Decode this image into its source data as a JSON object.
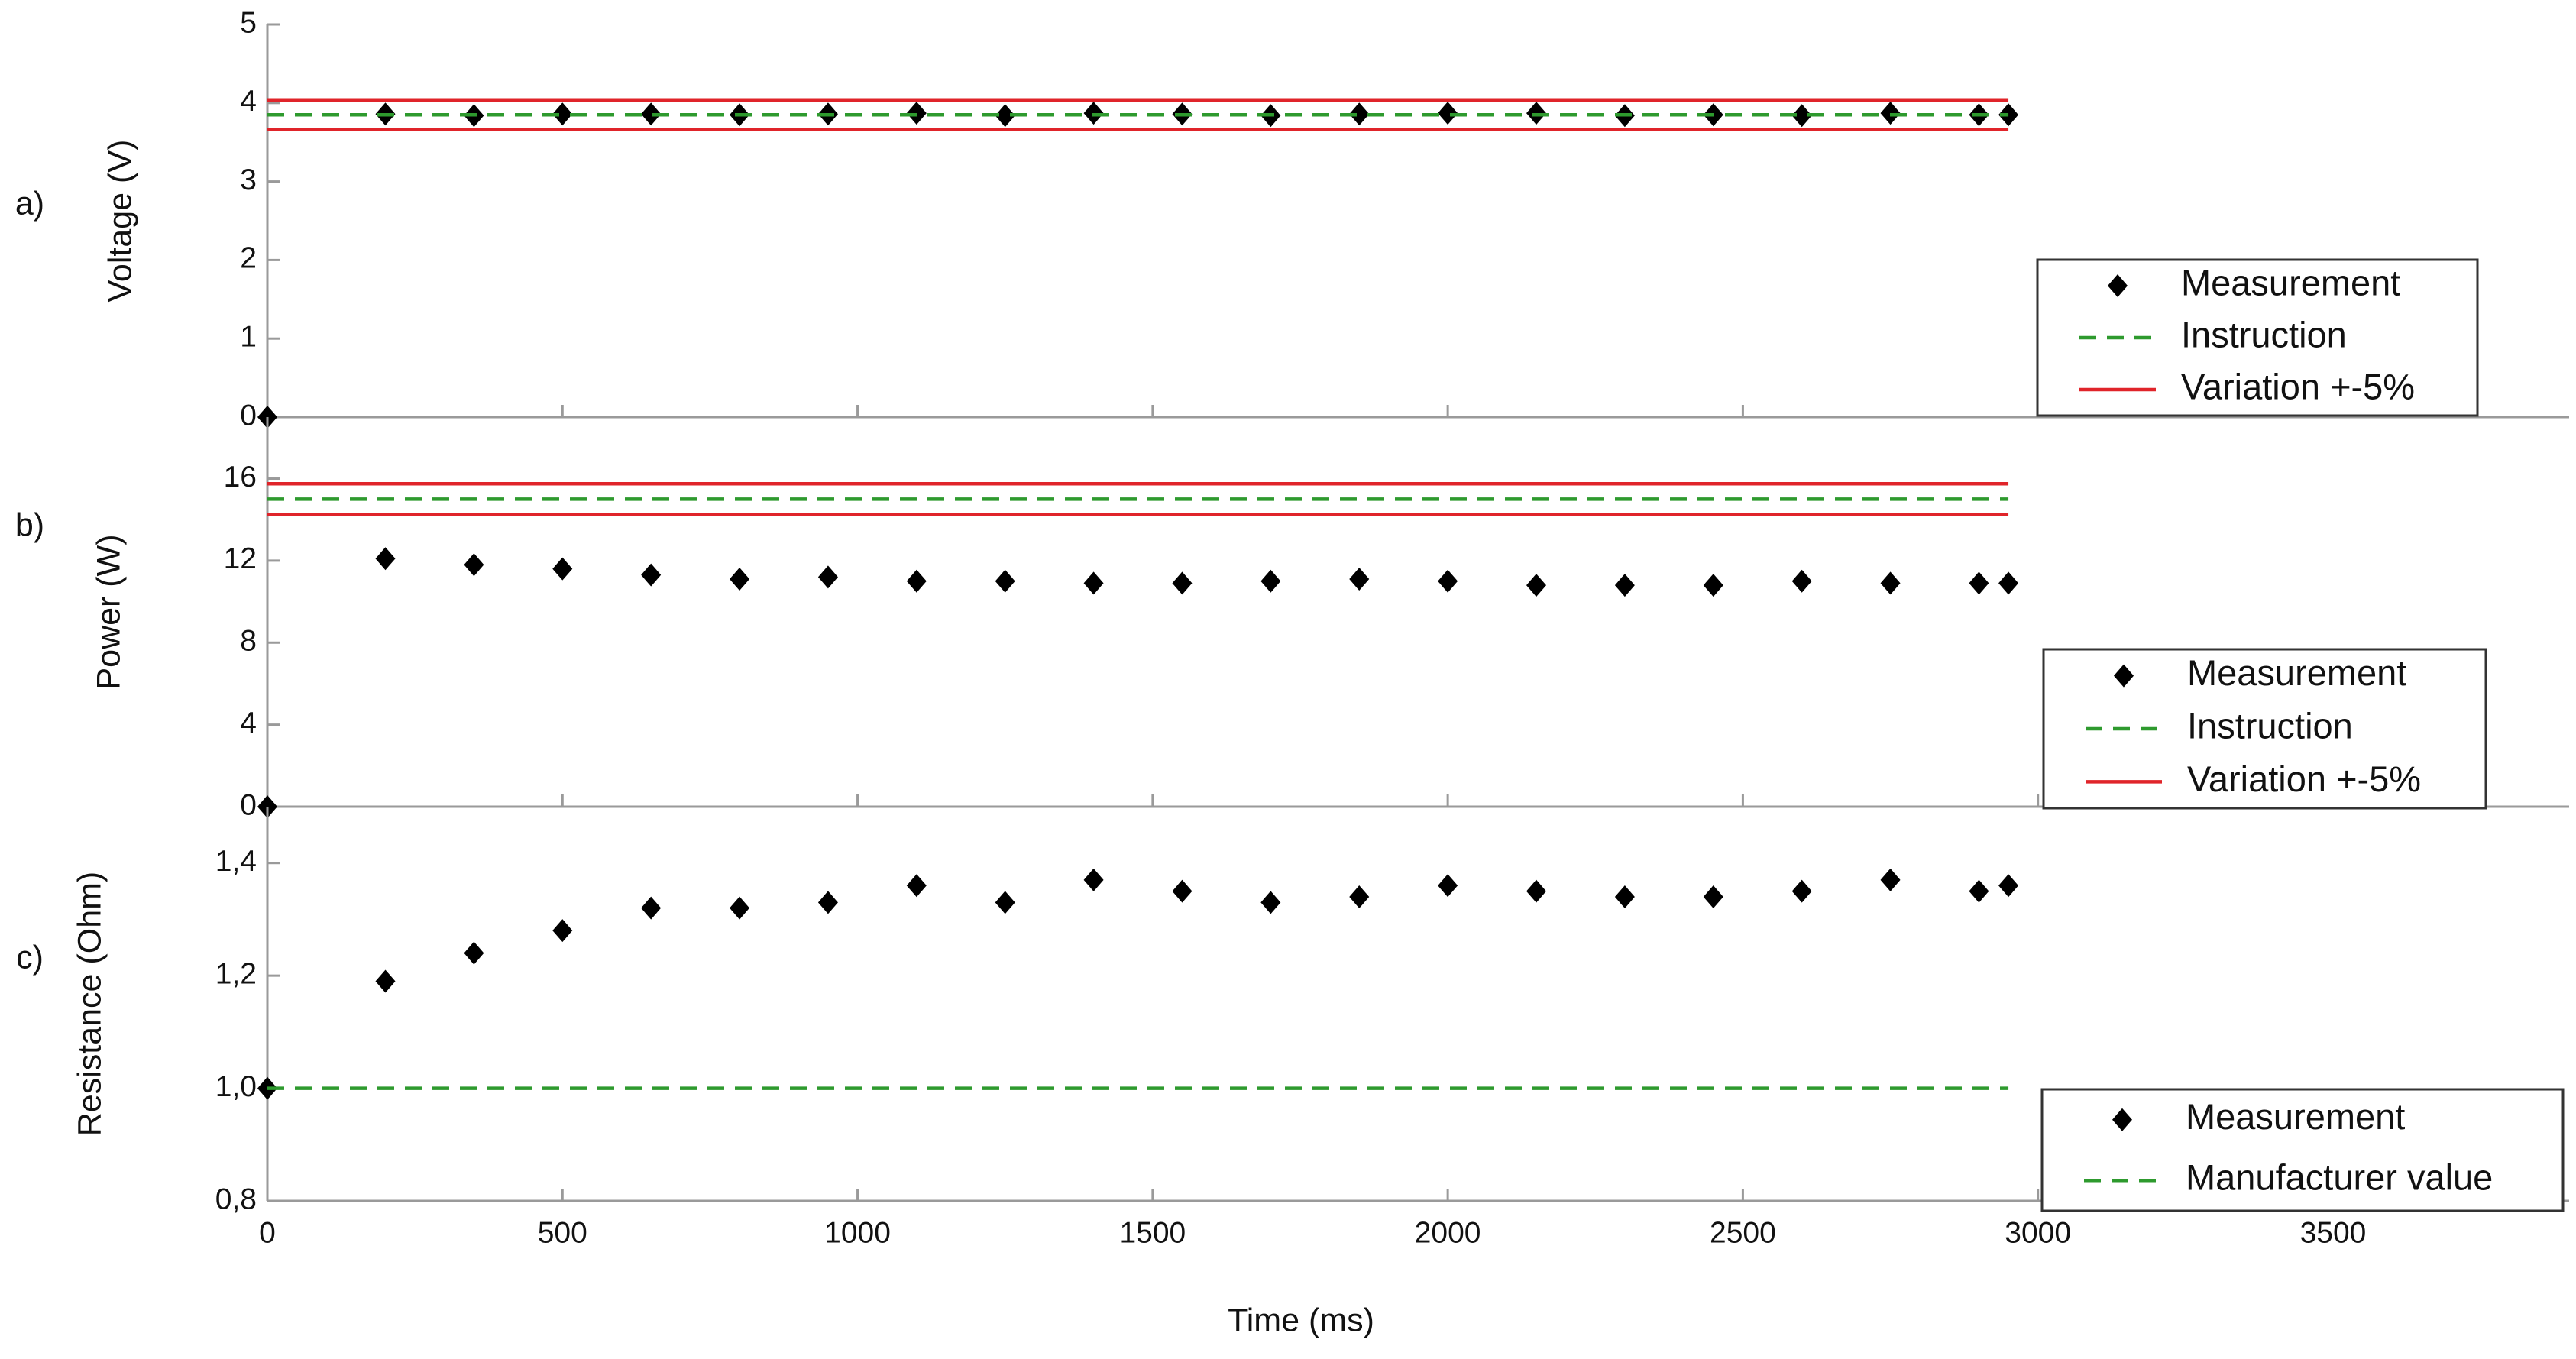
{
  "chart_data": [
    {
      "type": "scatter",
      "panel_label": "a)",
      "ylabel": "Voltage (V)",
      "xlim": [
        0,
        3900
      ],
      "ylim": [
        0,
        5
      ],
      "yticks": [
        0,
        1,
        2,
        3,
        4,
        5
      ],
      "legend": "lower right",
      "series": [
        {
          "name": "Measurement",
          "kind": "marker",
          "color": "#000000",
          "x": [
            0,
            200,
            350,
            500,
            650,
            800,
            950,
            1100,
            1250,
            1400,
            1550,
            1700,
            1850,
            2000,
            2150,
            2300,
            2450,
            2600,
            2750,
            2900,
            2950
          ],
          "values": [
            0,
            3.86,
            3.84,
            3.86,
            3.86,
            3.85,
            3.86,
            3.87,
            3.84,
            3.87,
            3.86,
            3.84,
            3.86,
            3.87,
            3.87,
            3.84,
            3.85,
            3.84,
            3.87,
            3.85,
            3.85
          ]
        },
        {
          "name": "Instruction",
          "kind": "dashed",
          "color": "#2e9a2e",
          "x": [
            0,
            2950
          ],
          "values": [
            3.85,
            3.85
          ]
        },
        {
          "name": "Variation +-5%",
          "kind": "solid",
          "color": "#e0242a",
          "x": [
            0,
            2950
          ],
          "values": [
            4.04,
            4.04
          ],
          "lower": [
            3.66,
            3.66
          ]
        }
      ]
    },
    {
      "type": "scatter",
      "panel_label": "b)",
      "ylabel": "Power (W)",
      "xlim": [
        0,
        3900
      ],
      "ylim": [
        0,
        19
      ],
      "yticks": [
        0,
        4,
        8,
        12,
        16
      ],
      "legend": "lower right",
      "series": [
        {
          "name": "Measurement",
          "kind": "marker",
          "color": "#000000",
          "x": [
            0,
            200,
            350,
            500,
            650,
            800,
            950,
            1100,
            1250,
            1400,
            1550,
            1700,
            1850,
            2000,
            2150,
            2300,
            2450,
            2600,
            2750,
            2900,
            2950
          ],
          "values": [
            0,
            12.1,
            11.8,
            11.6,
            11.3,
            11.1,
            11.2,
            11.0,
            11.0,
            10.9,
            10.9,
            11.0,
            11.1,
            11.0,
            10.8,
            10.8,
            10.8,
            11.0,
            10.9,
            10.9,
            10.9
          ]
        },
        {
          "name": "Instruction",
          "kind": "dashed",
          "color": "#2e9a2e",
          "x": [
            0,
            2950
          ],
          "values": [
            15,
            15
          ]
        },
        {
          "name": "Variation +-5%",
          "kind": "solid",
          "color": "#e0242a",
          "x": [
            0,
            2950
          ],
          "values": [
            15.75,
            15.75
          ],
          "lower": [
            14.25,
            14.25
          ]
        }
      ]
    },
    {
      "type": "scatter",
      "panel_label": "c)",
      "ylabel": "Resistance (Ohm)",
      "xlabel": "Time (ms)",
      "xlim": [
        0,
        3900
      ],
      "xticks": [
        0,
        500,
        1000,
        1500,
        2000,
        2500,
        3000,
        3500
      ],
      "ylim": [
        0.8,
        1.5
      ],
      "yticks": [
        {
          "value": 0.8,
          "label": "0,8"
        },
        {
          "value": 1.0,
          "label": "1,0"
        },
        {
          "value": 1.2,
          "label": "1,2"
        },
        {
          "value": 1.4,
          "label": "1,4"
        }
      ],
      "legend": "lower right",
      "series": [
        {
          "name": "Measurement",
          "kind": "marker",
          "color": "#000000",
          "x": [
            0,
            200,
            350,
            500,
            650,
            800,
            950,
            1100,
            1250,
            1400,
            1550,
            1700,
            1850,
            2000,
            2150,
            2300,
            2450,
            2600,
            2750,
            2900,
            2950
          ],
          "values": [
            1.0,
            1.19,
            1.24,
            1.28,
            1.32,
            1.32,
            1.33,
            1.36,
            1.33,
            1.37,
            1.35,
            1.33,
            1.34,
            1.36,
            1.35,
            1.34,
            1.34,
            1.35,
            1.37,
            1.35,
            1.36
          ]
        },
        {
          "name": "Manufacturer value",
          "kind": "dashed",
          "color": "#2e9a2e",
          "x": [
            0,
            2950
          ],
          "values": [
            1.0,
            1.0
          ]
        }
      ]
    }
  ]
}
